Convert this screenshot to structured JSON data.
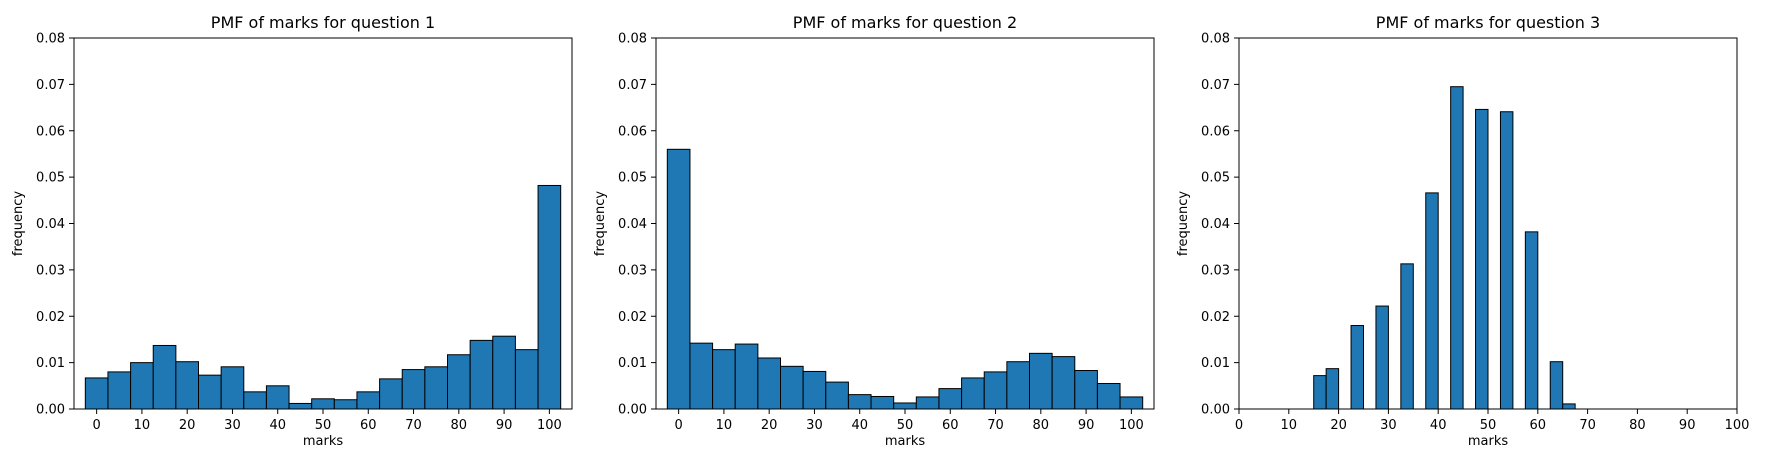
{
  "chart_data": [
    {
      "type": "bar",
      "title": "PMF of marks for question 1",
      "xlabel": "marks",
      "ylabel": "frequency",
      "xlim": [
        -5,
        105
      ],
      "ylim": [
        0,
        0.08
      ],
      "xticks": [
        "0",
        "10",
        "20",
        "30",
        "40",
        "50",
        "60",
        "70",
        "80",
        "90",
        "100"
      ],
      "yticks": [
        "0.00",
        "0.01",
        "0.02",
        "0.03",
        "0.04",
        "0.05",
        "0.06",
        "0.07",
        "0.08"
      ],
      "bin_width": 5,
      "bins": [
        {
          "x": 0,
          "y": 0.0067
        },
        {
          "x": 5,
          "y": 0.008
        },
        {
          "x": 10,
          "y": 0.01
        },
        {
          "x": 15,
          "y": 0.0137
        },
        {
          "x": 20,
          "y": 0.0102
        },
        {
          "x": 25,
          "y": 0.0073
        },
        {
          "x": 30,
          "y": 0.0091
        },
        {
          "x": 35,
          "y": 0.0037
        },
        {
          "x": 40,
          "y": 0.005
        },
        {
          "x": 45,
          "y": 0.0012
        },
        {
          "x": 50,
          "y": 0.0022
        },
        {
          "x": 55,
          "y": 0.002
        },
        {
          "x": 60,
          "y": 0.0037
        },
        {
          "x": 65,
          "y": 0.0065
        },
        {
          "x": 70,
          "y": 0.0085
        },
        {
          "x": 75,
          "y": 0.0091
        },
        {
          "x": 80,
          "y": 0.0117
        },
        {
          "x": 85,
          "y": 0.0148
        },
        {
          "x": 90,
          "y": 0.0157
        },
        {
          "x": 95,
          "y": 0.0128
        },
        {
          "x": 100,
          "y": 0.0482
        }
      ],
      "color": "#1f77b4",
      "grid": false
    },
    {
      "type": "bar",
      "title": "PMF of marks for question 2",
      "xlabel": "marks",
      "ylabel": "frequency",
      "xlim": [
        -5,
        105
      ],
      "ylim": [
        0,
        0.08
      ],
      "xticks": [
        "0",
        "10",
        "20",
        "30",
        "40",
        "50",
        "60",
        "70",
        "80",
        "90",
        "100"
      ],
      "yticks": [
        "0.00",
        "0.01",
        "0.02",
        "0.03",
        "0.04",
        "0.05",
        "0.06",
        "0.07",
        "0.08"
      ],
      "bin_width": 5,
      "bins": [
        {
          "x": 0,
          "y": 0.056
        },
        {
          "x": 5,
          "y": 0.0142
        },
        {
          "x": 10,
          "y": 0.0128
        },
        {
          "x": 15,
          "y": 0.014
        },
        {
          "x": 20,
          "y": 0.011
        },
        {
          "x": 25,
          "y": 0.0092
        },
        {
          "x": 30,
          "y": 0.0081
        },
        {
          "x": 35,
          "y": 0.0058
        },
        {
          "x": 40,
          "y": 0.0031
        },
        {
          "x": 45,
          "y": 0.0027
        },
        {
          "x": 50,
          "y": 0.0013
        },
        {
          "x": 55,
          "y": 0.0026
        },
        {
          "x": 60,
          "y": 0.0044
        },
        {
          "x": 65,
          "y": 0.0067
        },
        {
          "x": 70,
          "y": 0.008
        },
        {
          "x": 75,
          "y": 0.0102
        },
        {
          "x": 80,
          "y": 0.012
        },
        {
          "x": 85,
          "y": 0.0113
        },
        {
          "x": 90,
          "y": 0.0083
        },
        {
          "x": 95,
          "y": 0.0055
        },
        {
          "x": 100,
          "y": 0.0026
        }
      ],
      "color": "#1f77b4",
      "grid": false
    },
    {
      "type": "bar",
      "title": "PMF of marks for question 3",
      "xlabel": "marks",
      "ylabel": "frequency",
      "xlim": [
        0,
        100
      ],
      "ylim": [
        0,
        0.08
      ],
      "xticks": [
        "0",
        "10",
        "20",
        "30",
        "40",
        "50",
        "60",
        "70",
        "80",
        "90",
        "100"
      ],
      "yticks": [
        "0.00",
        "0.01",
        "0.02",
        "0.03",
        "0.04",
        "0.05",
        "0.06",
        "0.07",
        "0.08"
      ],
      "bin_width": 2.5,
      "bins": [
        {
          "x": 16.25,
          "y": 0.0072
        },
        {
          "x": 18.75,
          "y": 0.0087
        },
        {
          "x": 23.75,
          "y": 0.018
        },
        {
          "x": 28.75,
          "y": 0.0222
        },
        {
          "x": 33.75,
          "y": 0.0313
        },
        {
          "x": 38.75,
          "y": 0.0466
        },
        {
          "x": 43.75,
          "y": 0.0695
        },
        {
          "x": 48.75,
          "y": 0.0646
        },
        {
          "x": 53.75,
          "y": 0.0641
        },
        {
          "x": 58.75,
          "y": 0.0382
        },
        {
          "x": 63.75,
          "y": 0.0102
        },
        {
          "x": 66.25,
          "y": 0.0011
        }
      ],
      "color": "#1f77b4",
      "grid": false
    }
  ]
}
